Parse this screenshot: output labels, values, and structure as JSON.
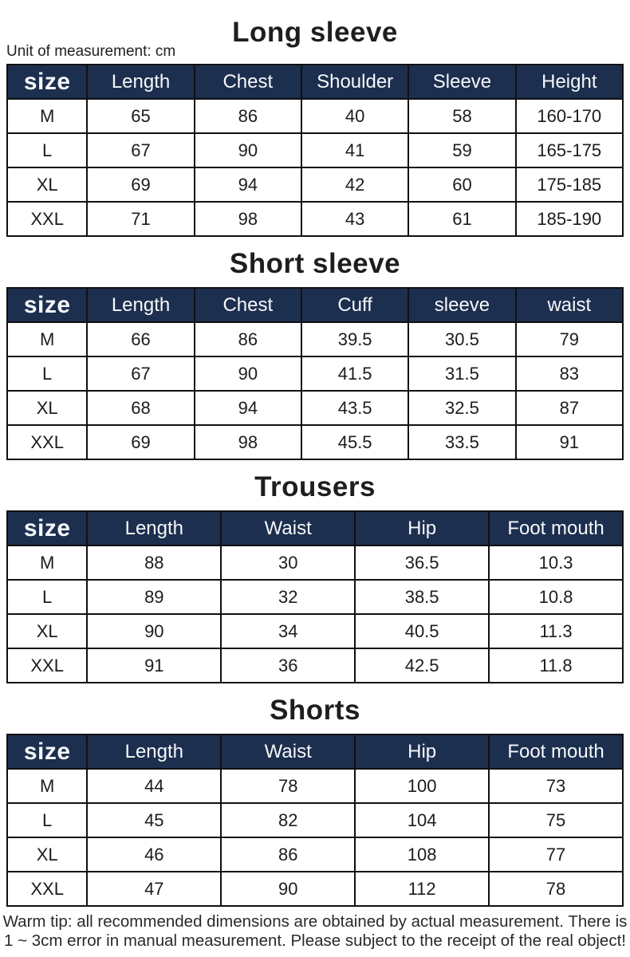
{
  "unit_label": "Unit of measurement: cm",
  "warm_tip": "Warm tip: all recommended dimensions are obtained by actual measurement. There is 1 ~ 3cm error in manual measurement. Please subject to the receipt of the real object!",
  "colors": {
    "header_bg": "#1d2f4e",
    "header_text": "#f5f7fa",
    "border": "#101010",
    "title_text": "#1e1e1e"
  },
  "sections": [
    {
      "title": "Long sleeve",
      "headers": [
        "size",
        "Length",
        "Chest",
        "Shoulder",
        "Sleeve",
        "Height"
      ],
      "rows": [
        [
          "M",
          "65",
          "86",
          "40",
          "58",
          "160-170"
        ],
        [
          "L",
          "67",
          "90",
          "41",
          "59",
          "165-175"
        ],
        [
          "XL",
          "69",
          "94",
          "42",
          "60",
          "175-185"
        ],
        [
          "XXL",
          "71",
          "98",
          "43",
          "61",
          "185-190"
        ]
      ]
    },
    {
      "title": "Short sleeve",
      "headers": [
        "size",
        "Length",
        "Chest",
        "Cuff",
        "sleeve",
        "waist"
      ],
      "rows": [
        [
          "M",
          "66",
          "86",
          "39.5",
          "30.5",
          "79"
        ],
        [
          "L",
          "67",
          "90",
          "41.5",
          "31.5",
          "83"
        ],
        [
          "XL",
          "68",
          "94",
          "43.5",
          "32.5",
          "87"
        ],
        [
          "XXL",
          "69",
          "98",
          "45.5",
          "33.5",
          "91"
        ]
      ]
    },
    {
      "title": "Trousers",
      "headers": [
        "size",
        "Length",
        "Waist",
        "Hip",
        "Foot mouth"
      ],
      "rows": [
        [
          "M",
          "88",
          "30",
          "36.5",
          "10.3"
        ],
        [
          "L",
          "89",
          "32",
          "38.5",
          "10.8"
        ],
        [
          "XL",
          "90",
          "34",
          "40.5",
          "11.3"
        ],
        [
          "XXL",
          "91",
          "36",
          "42.5",
          "11.8"
        ]
      ]
    },
    {
      "title": "Shorts",
      "headers": [
        "size",
        "Length",
        "Waist",
        "Hip",
        "Foot mouth"
      ],
      "rows": [
        [
          "M",
          "44",
          "78",
          "100",
          "73"
        ],
        [
          "L",
          "45",
          "82",
          "104",
          "75"
        ],
        [
          "XL",
          "46",
          "86",
          "108",
          "77"
        ],
        [
          "XXL",
          "47",
          "90",
          "112",
          "78"
        ]
      ]
    }
  ]
}
